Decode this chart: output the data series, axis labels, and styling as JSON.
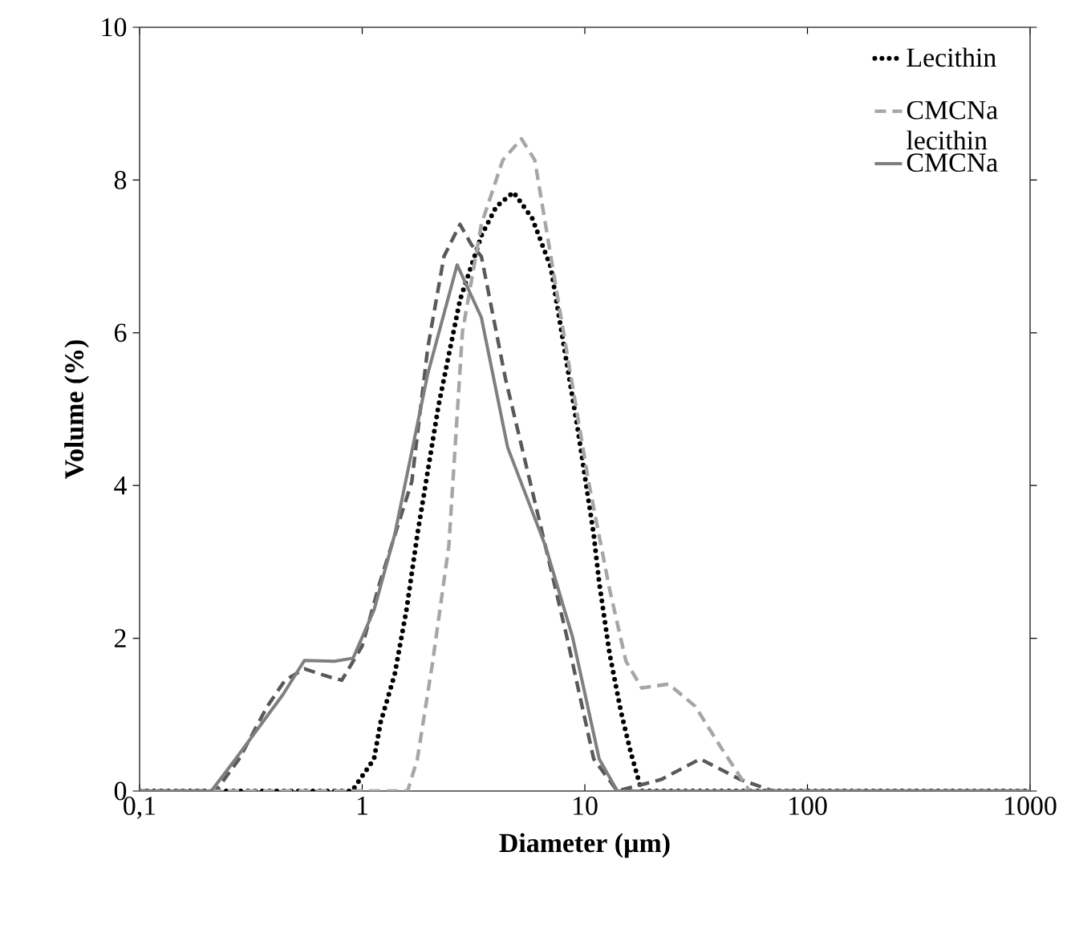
{
  "chart_data": {
    "type": "line",
    "xlabel": "Diameter (µm)",
    "ylabel": "Volume (%)",
    "log": "x",
    "xlim": [
      0.1,
      1000
    ],
    "xticks": [
      {
        "value": 0.1,
        "label": "0,1"
      },
      1,
      10,
      100,
      1000
    ],
    "ylim": [
      0,
      10
    ],
    "yticks": [
      0,
      2,
      4,
      6,
      8,
      10
    ],
    "grid": false,
    "legend": "top right",
    "marker": "none",
    "series": [
      {
        "name": "Lecithin",
        "color": "#000000",
        "line_style": "dotted",
        "x": [
          0.1,
          0.9,
          1.13,
          1.21,
          1.4,
          1.58,
          1.77,
          2.2,
          2.75,
          3.43,
          4.0,
          4.78,
          5.8,
          7.03,
          9.28,
          10.96,
          11.6,
          12.9,
          14.5,
          16.1,
          18,
          1000
        ],
        "values": [
          0,
          0,
          0.42,
          0.9,
          1.53,
          2.37,
          3.36,
          5.04,
          6.43,
          7.27,
          7.65,
          7.84,
          7.5,
          6.86,
          4.75,
          3.36,
          2.73,
          1.81,
          1.05,
          0.5,
          0,
          0
        ]
      },
      {
        "color": "#595959",
        "line_style": "dashed",
        "x": [
          0.1,
          0.22,
          0.28,
          0.375,
          0.45,
          0.55,
          0.7,
          0.81,
          1.0,
          1.2,
          1.67,
          1.97,
          2.33,
          2.75,
          3.1,
          3.43,
          4.4,
          6.65,
          8.3,
          10.96,
          14,
          22,
          33,
          50,
          70,
          1000
        ],
        "values": [
          0,
          0,
          0.42,
          1.11,
          1.45,
          1.6,
          1.5,
          1.45,
          1.9,
          2.73,
          4.05,
          5.8,
          7.0,
          7.42,
          7.15,
          7.0,
          5.4,
          3.21,
          2.02,
          0.42,
          0,
          0.15,
          0.42,
          0.15,
          0,
          0
        ]
      },
      {
        "name": "CMCNa lecithin",
        "color": "#a6a6a6",
        "line_style": "dashed",
        "x": [
          0.1,
          1.6,
          1.77,
          2.07,
          2.45,
          2.82,
          3.43,
          4.28,
          5.19,
          5.96,
          7.86,
          10.4,
          12.9,
          15.3,
          18,
          23.8,
          31.3,
          41.3,
          55,
          1000
        ],
        "values": [
          0,
          0,
          0.42,
          1.68,
          3.21,
          6.01,
          7.42,
          8.26,
          8.54,
          8.26,
          6.16,
          4.05,
          2.65,
          1.7,
          1.35,
          1.4,
          1.11,
          0.55,
          0,
          0
        ]
      },
      {
        "name": "CMCNa",
        "color": "#7f7f7f",
        "line_style": "solid",
        "x": [
          0.1,
          0.21,
          0.27,
          0.44,
          0.55,
          0.75,
          0.91,
          1.13,
          1.4,
          1.97,
          2.67,
          3.43,
          4.5,
          6.65,
          8.8,
          11.6,
          14,
          1000
        ],
        "values": [
          0,
          0,
          0.42,
          1.26,
          1.71,
          1.7,
          1.74,
          2.37,
          3.36,
          5.46,
          6.89,
          6.2,
          4.5,
          3.21,
          2.02,
          0.42,
          0,
          0
        ]
      }
    ]
  }
}
